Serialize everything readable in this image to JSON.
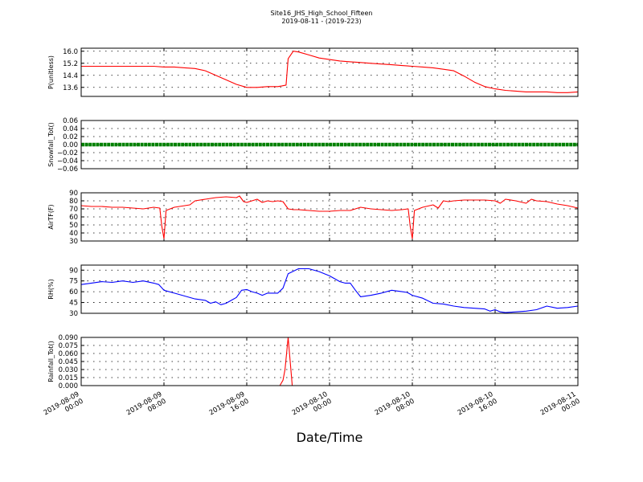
{
  "figure": {
    "title": "Site16_JHS_High_School_Fifteen",
    "subtitle": "2019-08-11 - (2019-223)",
    "xlabel": "Date/Time"
  },
  "chart_data": [
    {
      "type": "line",
      "ylabel": "P(unitless)",
      "ylim": [
        13.0,
        16.2
      ],
      "yticks": [
        13.6,
        14.4,
        15.2,
        16.0
      ],
      "ytick_labels": [
        "13.6",
        "14.4",
        "15.2",
        "16.0"
      ],
      "xlim": [
        0,
        48
      ],
      "x_units": "hours since 2019-08-09 00:00",
      "grid": true,
      "series": [
        {
          "color": "#ff0000",
          "x": [
            0,
            2,
            4,
            6,
            7,
            8,
            9,
            10,
            11,
            12,
            13,
            14,
            15,
            16,
            17,
            18,
            19,
            19.4,
            19.8,
            20,
            20.5,
            21,
            22,
            23,
            24,
            25,
            26,
            27,
            28,
            29,
            30,
            31,
            32,
            33,
            34,
            35,
            36,
            37,
            38,
            39,
            40,
            41,
            42,
            43,
            44,
            45,
            46,
            47,
            48
          ],
          "y": [
            15.0,
            15.0,
            15.0,
            15.0,
            15.0,
            14.95,
            14.95,
            14.9,
            14.85,
            14.7,
            14.4,
            14.1,
            13.8,
            13.6,
            13.6,
            13.65,
            13.65,
            13.7,
            13.75,
            15.5,
            16.0,
            15.95,
            15.75,
            15.55,
            15.45,
            15.35,
            15.3,
            15.25,
            15.2,
            15.15,
            15.1,
            15.05,
            15.0,
            14.95,
            14.9,
            14.8,
            14.7,
            14.35,
            13.95,
            13.65,
            13.5,
            13.4,
            13.35,
            13.3,
            13.3,
            13.3,
            13.25,
            13.25,
            13.3
          ]
        }
      ]
    },
    {
      "type": "line",
      "ylabel": "Snowfall_Tot()",
      "ylim": [
        -0.06,
        0.06
      ],
      "yticks": [
        -0.06,
        -0.04,
        -0.02,
        0.0,
        0.02,
        0.04,
        0.06
      ],
      "ytick_labels": [
        "−0.06",
        "−0.04",
        "−0.02",
        "0.00",
        "0.02",
        "0.04",
        "0.06"
      ],
      "xlim": [
        0,
        48
      ],
      "grid": true,
      "series": [
        {
          "color": "#008000",
          "style": "markers",
          "x": [
            0,
            48
          ],
          "y": [
            0.0,
            0.0
          ]
        }
      ]
    },
    {
      "type": "line",
      "ylabel": "AirTF(F)",
      "ylim": [
        30,
        90
      ],
      "yticks": [
        30,
        40,
        50,
        60,
        70,
        80,
        90
      ],
      "ytick_labels": [
        "30",
        "40",
        "50",
        "60",
        "70",
        "80",
        "90"
      ],
      "xlim": [
        0,
        48
      ],
      "grid": true,
      "series": [
        {
          "color": "#ff0000",
          "x": [
            0,
            1,
            2,
            3,
            4,
            5,
            6,
            7,
            7.6,
            7.8,
            8.0,
            8.2,
            9,
            10,
            10.5,
            11,
            12,
            13,
            14,
            15,
            15.3,
            15.7,
            16,
            17,
            17.5,
            18,
            18.5,
            19,
            19.5,
            20,
            20.5,
            21,
            22,
            23,
            24,
            25,
            26,
            27,
            28,
            29,
            30,
            31,
            31.6,
            31.8,
            32.0,
            32.2,
            33,
            34,
            34.5,
            35,
            35.5,
            36,
            37,
            38,
            39,
            40,
            40.5,
            41,
            42,
            43,
            43.5,
            44,
            45,
            46,
            47,
            48
          ],
          "y": [
            74,
            73,
            73,
            72,
            72,
            71,
            70,
            72,
            71,
            48,
            33,
            68,
            72,
            74,
            75,
            80,
            82,
            84,
            85,
            84,
            86,
            79,
            78,
            82,
            78,
            80,
            79,
            80,
            79,
            70,
            69,
            69,
            68,
            67,
            67,
            68,
            68,
            72,
            70,
            69,
            68,
            69,
            70,
            48,
            33,
            68,
            72,
            75,
            71,
            80,
            79,
            80,
            81,
            81,
            81,
            80,
            77,
            82,
            80,
            77,
            82,
            80,
            79,
            76,
            74,
            71
          ]
        }
      ]
    },
    {
      "type": "line",
      "ylabel": "RH(%)",
      "ylim": [
        30,
        97
      ],
      "yticks": [
        30,
        45,
        60,
        75,
        90
      ],
      "ytick_labels": [
        "30",
        "45",
        "60",
        "75",
        "90"
      ],
      "xlim": [
        0,
        48
      ],
      "grid": true,
      "series": [
        {
          "color": "#0000ff",
          "x": [
            0,
            1,
            2,
            3,
            4,
            5,
            6,
            7,
            7.5,
            8,
            9,
            10,
            11,
            12,
            12.5,
            13,
            13.5,
            14,
            14.5,
            15,
            15.5,
            16,
            16.5,
            17,
            17.5,
            18,
            19,
            19.5,
            20,
            21,
            22,
            23,
            24,
            25,
            25.5,
            26,
            26.5,
            27,
            28,
            29,
            30,
            31,
            31.5,
            32,
            33,
            34,
            35,
            36,
            37,
            38,
            39,
            39.5,
            40,
            40.5,
            41,
            42,
            43,
            44,
            45,
            46,
            47,
            48
          ],
          "y": [
            70,
            72,
            74,
            73,
            75,
            73,
            75,
            72,
            70,
            62,
            58,
            54,
            50,
            48,
            44,
            46,
            42,
            44,
            48,
            52,
            62,
            63,
            60,
            58,
            55,
            58,
            58,
            65,
            85,
            92,
            92,
            88,
            82,
            74,
            72,
            72,
            62,
            53,
            55,
            58,
            62,
            60,
            59,
            55,
            51,
            44,
            43,
            40,
            38,
            37,
            36,
            33,
            35,
            32,
            31,
            32,
            33,
            35,
            40,
            37,
            38,
            40
          ]
        }
      ]
    },
    {
      "type": "line",
      "ylabel": "Rainfall_Tot()",
      "ylim": [
        0.0,
        0.09
      ],
      "yticks": [
        0.0,
        0.015,
        0.03,
        0.045,
        0.06,
        0.075,
        0.09
      ],
      "ytick_labels": [
        "0.000",
        "0.015",
        "0.030",
        "0.045",
        "0.060",
        "0.075",
        "0.090"
      ],
      "xlim": [
        0,
        48
      ],
      "grid": true,
      "series": [
        {
          "color": "#ff0000",
          "x": [
            0,
            19.2,
            19.5,
            19.7,
            20.0,
            20.4,
            48
          ],
          "y": [
            0.0,
            0.0,
            0.01,
            0.03,
            0.09,
            0.0,
            0.0
          ]
        }
      ]
    }
  ],
  "xaxis": {
    "ticks": [
      0,
      8,
      16,
      24,
      32,
      40,
      48
    ],
    "tick_labels": [
      [
        "2019-08-09",
        "00:00"
      ],
      [
        "2019-08-09",
        "08:00"
      ],
      [
        "2019-08-09",
        "16:00"
      ],
      [
        "2019-08-10",
        "00:00"
      ],
      [
        "2019-08-10",
        "08:00"
      ],
      [
        "2019-08-10",
        "16:00"
      ],
      [
        "2019-08-11",
        "00:00"
      ]
    ]
  }
}
